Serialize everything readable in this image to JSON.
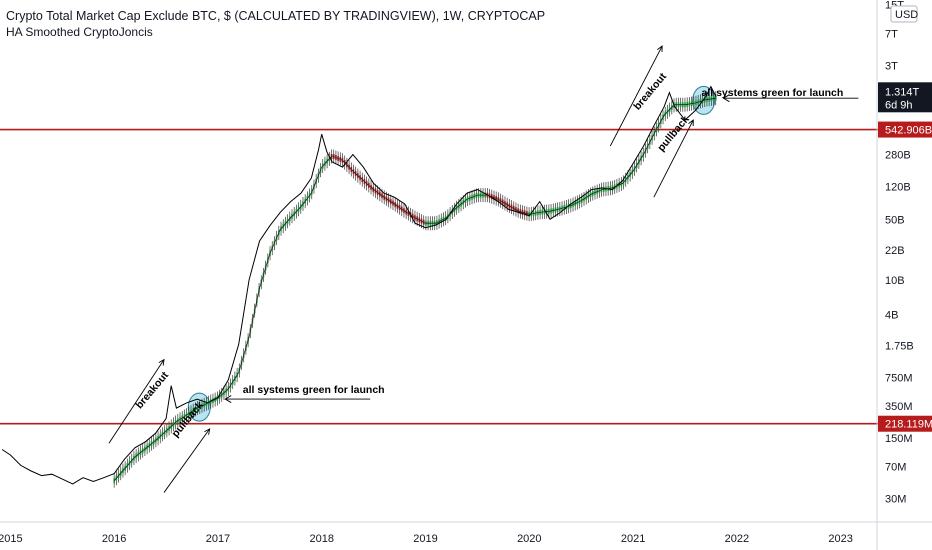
{
  "header": {
    "title": "Crypto Total Market Cap Exclude BTC, $ (CALCULATED BY TRADINGVIEW), 1W, CRYPTOCAP",
    "indicator": "HA Smoothed CryptoJoncis"
  },
  "currency_button": "USD",
  "price_tag": {
    "value": "1.314T",
    "countdown": "6d 9h"
  },
  "colors": {
    "line": "#000000",
    "ha_up": "#1e9b3c",
    "ha_down": "#9b1c1c",
    "level": "#b71c1c",
    "highlight": "#7fd0e6",
    "axis_bg": "#ffffff"
  },
  "chart_data": {
    "type": "line",
    "scale": "log",
    "x_unit": "year",
    "y_unit": "USD",
    "xlim": [
      2014.9,
      2023.35
    ],
    "ylim": [
      16000000,
      17000000000000
    ],
    "xticks": [
      "2015",
      "2016",
      "2017",
      "2018",
      "2019",
      "2020",
      "2021",
      "2022",
      "2023"
    ],
    "yticks": [
      {
        "label": "15T",
        "value": 15000000000000
      },
      {
        "label": "7T",
        "value": 7000000000000
      },
      {
        "label": "3T",
        "value": 3000000000000
      },
      {
        "label": "280B",
        "value": 280000000000
      },
      {
        "label": "120B",
        "value": 120000000000
      },
      {
        "label": "50B",
        "value": 50000000000
      },
      {
        "label": "22B",
        "value": 22000000000
      },
      {
        "label": "10B",
        "value": 10000000000
      },
      {
        "label": "4B",
        "value": 4000000000
      },
      {
        "label": "1.75B",
        "value": 1750000000
      },
      {
        "label": "750M",
        "value": 750000000
      },
      {
        "label": "350M",
        "value": 350000000
      },
      {
        "label": "150M",
        "value": 150000000
      },
      {
        "label": "70M",
        "value": 70000000
      },
      {
        "label": "30M",
        "value": 30000000
      }
    ],
    "levels": [
      {
        "label": "542.906B",
        "value": 542906000000
      },
      {
        "label": "218.119M",
        "value": 218119000
      }
    ],
    "last_value": 1314000000000,
    "series": [
      {
        "kind": "price_line",
        "points": [
          [
            2014.92,
            110000000
          ],
          [
            2015.0,
            95000000
          ],
          [
            2015.1,
            72000000
          ],
          [
            2015.2,
            62000000
          ],
          [
            2015.3,
            55000000
          ],
          [
            2015.4,
            57000000
          ],
          [
            2015.5,
            50000000
          ],
          [
            2015.6,
            44000000
          ],
          [
            2015.7,
            52000000
          ],
          [
            2015.8,
            47000000
          ],
          [
            2015.9,
            52000000
          ],
          [
            2016.0,
            58000000
          ],
          [
            2016.1,
            85000000
          ],
          [
            2016.2,
            115000000
          ],
          [
            2016.3,
            135000000
          ],
          [
            2016.4,
            170000000
          ],
          [
            2016.5,
            250000000
          ],
          [
            2016.55,
            600000000
          ],
          [
            2016.6,
            330000000
          ],
          [
            2016.7,
            380000000
          ],
          [
            2016.8,
            420000000
          ],
          [
            2016.9,
            380000000
          ],
          [
            2017.0,
            440000000
          ],
          [
            2017.1,
            700000000
          ],
          [
            2017.2,
            1800000000
          ],
          [
            2017.3,
            10000000000
          ],
          [
            2017.4,
            28000000000
          ],
          [
            2017.5,
            42000000000
          ],
          [
            2017.6,
            60000000000
          ],
          [
            2017.7,
            80000000000
          ],
          [
            2017.8,
            100000000000
          ],
          [
            2017.9,
            150000000000
          ],
          [
            2017.97,
            320000000000
          ],
          [
            2018.0,
            480000000000
          ],
          [
            2018.05,
            300000000000
          ],
          [
            2018.1,
            230000000000
          ],
          [
            2018.2,
            200000000000
          ],
          [
            2018.3,
            280000000000
          ],
          [
            2018.4,
            200000000000
          ],
          [
            2018.5,
            130000000000
          ],
          [
            2018.6,
            100000000000
          ],
          [
            2018.7,
            90000000000
          ],
          [
            2018.8,
            75000000000
          ],
          [
            2018.9,
            45000000000
          ],
          [
            2019.0,
            40000000000
          ],
          [
            2019.1,
            43000000000
          ],
          [
            2019.2,
            50000000000
          ],
          [
            2019.3,
            75000000000
          ],
          [
            2019.4,
            100000000000
          ],
          [
            2019.5,
            110000000000
          ],
          [
            2019.6,
            95000000000
          ],
          [
            2019.7,
            80000000000
          ],
          [
            2019.8,
            65000000000
          ],
          [
            2019.9,
            60000000000
          ],
          [
            2020.0,
            55000000000
          ],
          [
            2020.1,
            80000000000
          ],
          [
            2020.2,
            50000000000
          ],
          [
            2020.3,
            60000000000
          ],
          [
            2020.4,
            75000000000
          ],
          [
            2020.5,
            90000000000
          ],
          [
            2020.6,
            110000000000
          ],
          [
            2020.7,
            115000000000
          ],
          [
            2020.8,
            110000000000
          ],
          [
            2020.9,
            140000000000
          ],
          [
            2021.0,
            220000000000
          ],
          [
            2021.1,
            350000000000
          ],
          [
            2021.2,
            600000000000
          ],
          [
            2021.3,
            1000000000000
          ],
          [
            2021.35,
            1450000000000
          ],
          [
            2021.4,
            1000000000000
          ],
          [
            2021.5,
            700000000000
          ],
          [
            2021.6,
            900000000000
          ],
          [
            2021.7,
            1300000000000
          ],
          [
            2021.75,
            1700000000000
          ],
          [
            2021.8,
            1300000000000
          ]
        ]
      },
      {
        "kind": "heikin_ashi_smoothed",
        "points": [
          [
            2016.0,
            48000000
          ],
          [
            2016.2,
            90000000
          ],
          [
            2016.4,
            140000000
          ],
          [
            2016.6,
            230000000
          ],
          [
            2016.8,
            330000000
          ],
          [
            2017.0,
            430000000
          ],
          [
            2017.1,
            550000000
          ],
          [
            2017.2,
            850000000
          ],
          [
            2017.3,
            2200000000
          ],
          [
            2017.4,
            8000000000
          ],
          [
            2017.5,
            20000000000
          ],
          [
            2017.6,
            38000000000
          ],
          [
            2017.7,
            52000000000
          ],
          [
            2017.8,
            70000000000
          ],
          [
            2017.9,
            100000000000
          ],
          [
            2018.0,
            200000000000
          ],
          [
            2018.1,
            270000000000
          ],
          [
            2018.2,
            240000000000
          ],
          [
            2018.3,
            180000000000
          ],
          [
            2018.4,
            140000000000
          ],
          [
            2018.5,
            110000000000
          ],
          [
            2018.6,
            90000000000
          ],
          [
            2018.7,
            75000000000
          ],
          [
            2018.8,
            62000000000
          ],
          [
            2018.9,
            52000000000
          ],
          [
            2019.0,
            45000000000
          ],
          [
            2019.1,
            45000000000
          ],
          [
            2019.2,
            52000000000
          ],
          [
            2019.3,
            68000000000
          ],
          [
            2019.4,
            85000000000
          ],
          [
            2019.5,
            95000000000
          ],
          [
            2019.6,
            95000000000
          ],
          [
            2019.7,
            85000000000
          ],
          [
            2019.8,
            72000000000
          ],
          [
            2019.9,
            62000000000
          ],
          [
            2020.0,
            57000000000
          ],
          [
            2020.1,
            60000000000
          ],
          [
            2020.2,
            62000000000
          ],
          [
            2020.3,
            66000000000
          ],
          [
            2020.4,
            72000000000
          ],
          [
            2020.5,
            82000000000
          ],
          [
            2020.6,
            98000000000
          ],
          [
            2020.7,
            110000000000
          ],
          [
            2020.8,
            115000000000
          ],
          [
            2020.9,
            130000000000
          ],
          [
            2021.0,
            180000000000
          ],
          [
            2021.1,
            280000000000
          ],
          [
            2021.2,
            480000000000
          ],
          [
            2021.3,
            800000000000
          ],
          [
            2021.4,
            1050000000000
          ],
          [
            2021.5,
            1050000000000
          ],
          [
            2021.6,
            1100000000000
          ],
          [
            2021.7,
            1200000000000
          ],
          [
            2021.8,
            1250000000000
          ]
        ]
      }
    ],
    "annotations": [
      {
        "text": "breakout",
        "x": 2016.3,
        "y": 320000000
      },
      {
        "text": "pullback",
        "x": 2016.6,
        "y": 150000000
      },
      {
        "text": "all systems green for launch",
        "x": 2017.22,
        "y": 420000000
      },
      {
        "text": "breakout",
        "x": 2021.05,
        "y": 900000000000
      },
      {
        "text": "pullback",
        "x": 2021.28,
        "y": 300000000000
      },
      {
        "text": "all systems green for launch",
        "x": 2021.9,
        "y": 1400000000000
      }
    ]
  }
}
